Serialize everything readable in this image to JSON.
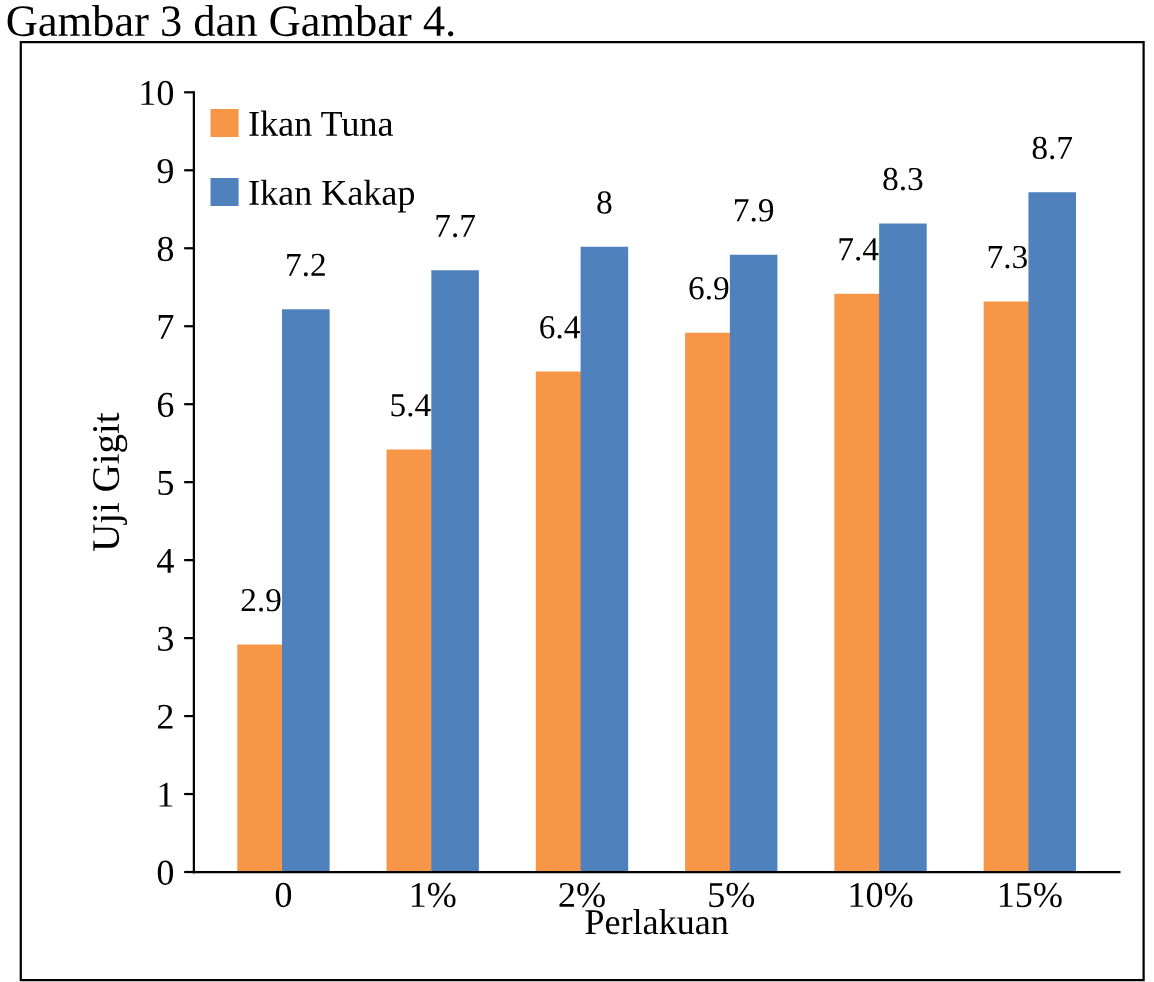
{
  "chart_data": {
    "type": "bar",
    "title": null,
    "xlabel": "Perlakuan",
    "ylabel": "Uji Gigit",
    "annotations": [
      "Gambar 3 dan Gambar 4."
    ],
    "categories": [
      "0",
      "1%",
      "2%",
      "5%",
      "10%",
      "15%"
    ],
    "series": [
      {
        "name": "Ikan Tuna",
        "color": "#f79646",
        "values": [
          2.9,
          5.4,
          6.4,
          6.9,
          7.4,
          7.3
        ]
      },
      {
        "name": "Ikan Kakap",
        "color": "#4f81bd",
        "values": [
          7.2,
          7.7,
          8,
          7.9,
          8.3,
          8.7
        ]
      }
    ],
    "ylim": [
      0,
      10
    ],
    "yticks": [
      0,
      1,
      2,
      3,
      4,
      5,
      6,
      7,
      8,
      9,
      10
    ],
    "grid": false,
    "legend": "top left",
    "data_labels": true
  }
}
